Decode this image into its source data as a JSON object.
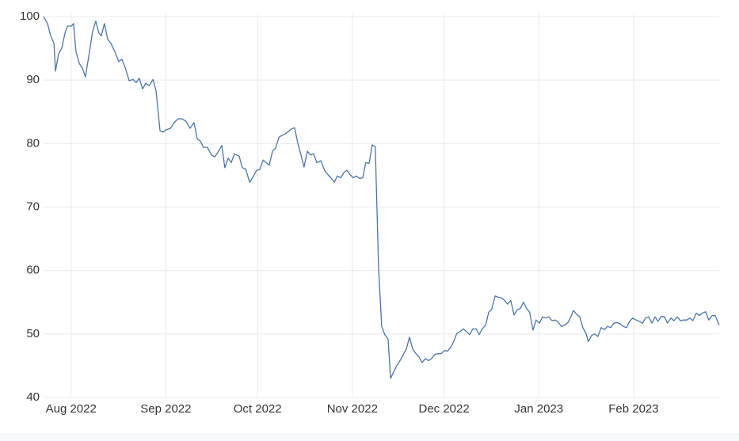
{
  "chart_data": {
    "type": "line",
    "x": [
      0,
      1.3,
      2.3,
      3.4,
      3.9,
      4.9,
      6,
      7,
      7.8,
      9.1,
      9.8,
      10.6,
      11.7,
      12.7,
      13.7,
      15,
      16,
      17.1,
      18.1,
      18.9,
      19.9,
      21,
      22,
      23.3,
      24.6,
      25.6,
      26.7,
      28,
      29.3,
      30.3,
      31.3,
      32.4,
      33.4,
      34.5,
      35.8,
      36.8,
      38.1,
      39.1,
      40.2,
      41.5,
      42.7,
      44,
      45.3,
      46.6,
      47.9,
      49.2,
      50.3,
      51.3,
      52.3,
      53.6,
      54.9,
      56,
      57,
      58.3,
      59.3,
      60.4,
      61.4,
      62.4,
      64,
      65,
      66.1,
      67.4,
      68.7,
      69.7,
      70.7,
      71.8,
      72.8,
      73.8,
      74.9,
      75.9,
      77,
      78,
      79,
      80.1,
      81.1,
      82.1,
      83.2,
      84.2,
      85.2,
      86.3,
      87.3,
      88.3,
      89.4,
      90.7,
      92,
      93,
      94,
      95.1,
      96.1,
      97.2,
      98.2,
      99.2,
      100.3,
      101.3,
      102.3,
      103.4,
      104.4,
      105.4,
      106.5,
      107.5,
      108.5,
      109.6,
      110.6,
      111.6,
      112.7,
      113.5,
      114.5,
      115.5,
      116.6,
      117.6,
      118.7,
      119.7,
      120.7,
      121.8,
      122.8,
      123.8,
      124.9,
      125.9,
      126.9,
      128,
      129,
      130.1,
      131.1,
      132.1,
      133.2,
      134.2,
      135.2,
      136.3,
      137.3,
      138.3,
      139.4,
      140.4,
      141.5,
      142.5,
      143.5,
      144.6,
      145.6,
      146.6,
      147.7,
      148.7,
      149.7,
      150.8,
      151.8,
      152.8,
      153.9,
      154.9,
      155.9,
      157,
      158,
      159,
      160.1,
      161.1,
      162.2,
      163.2,
      164.2,
      165.3,
      166.3,
      167.4,
      168.4,
      169.4,
      170.5,
      171.5,
      172.5,
      173.3,
      174.4,
      175.4,
      176.4,
      177.5,
      178.2,
      179.3,
      180.3,
      181.3,
      182.4,
      183.4,
      184.5,
      185.5,
      186.5,
      187.6,
      188.6,
      189.6,
      190.7,
      191.7,
      192.7,
      193.8,
      194.8,
      195.9,
      196.9,
      197.9,
      199,
      200,
      201,
      202.1,
      203.1,
      204.1,
      205.2,
      206.2,
      207.3,
      208.3,
      209.3,
      210.4,
      211.4,
      212.4,
      213.5,
      214.5,
      215.5,
      216.6,
      217.6,
      218.7,
      219.7,
      221
    ],
    "values": [
      100,
      98.9,
      97,
      95.8,
      91.4,
      94.1,
      95.1,
      97.4,
      98.5,
      98.5,
      98.9,
      94.5,
      92.6,
      91.9,
      90.5,
      94.4,
      97.6,
      99.3,
      97.4,
      97,
      98.9,
      96.4,
      95.8,
      94.5,
      92.9,
      93.3,
      92,
      89.9,
      90.1,
      89.6,
      90.3,
      88.6,
      89.5,
      89.1,
      90.1,
      88.3,
      82,
      81.8,
      82.2,
      82.4,
      83.3,
      83.9,
      83.9,
      83.5,
      82.4,
      83.3,
      80.7,
      80.4,
      79.4,
      79.4,
      78.2,
      77.9,
      78.6,
      79.7,
      76.2,
      77.7,
      77,
      78.4,
      78,
      76.2,
      76,
      73.9,
      74.9,
      75.8,
      75.9,
      77.4,
      77,
      76.6,
      78.8,
      79.3,
      81,
      81.3,
      81.5,
      81.9,
      82.3,
      82.5,
      80,
      78.2,
      76.3,
      78.8,
      78.2,
      78.4,
      77,
      77.3,
      75.7,
      75.1,
      74.6,
      73.9,
      74.9,
      74.6,
      75.4,
      75.8,
      75.1,
      74.6,
      74.9,
      74.5,
      74.6,
      77,
      76.9,
      79.8,
      79.5,
      60.2,
      51.2,
      49.9,
      49.2,
      43,
      44,
      45,
      45.8,
      46.7,
      47.7,
      49.5,
      47.7,
      46.9,
      46.4,
      45.5,
      46.1,
      45.8,
      46.1,
      46.8,
      46.9,
      46.9,
      47.4,
      47.3,
      47.9,
      48.9,
      50.1,
      50.4,
      50.8,
      50.4,
      49.9,
      50.8,
      50.8,
      49.9,
      50.8,
      51.4,
      53.4,
      53.9,
      56,
      55.8,
      55.7,
      55.3,
      54.7,
      55.3,
      53,
      53.8,
      54,
      55,
      54,
      53.4,
      50.6,
      52.2,
      51.7,
      52.7,
      52.5,
      52.7,
      52.1,
      52.2,
      51.8,
      51.2,
      51.4,
      51.8,
      52.7,
      53.7,
      53.1,
      52.7,
      51,
      50,
      48.8,
      49.8,
      50,
      49.6,
      51,
      50.7,
      51.2,
      51,
      51.7,
      51.8,
      51.6,
      51.2,
      51,
      52,
      52.5,
      52.2,
      52,
      51.7,
      52.5,
      52.7,
      51.7,
      52.7,
      52,
      52.8,
      52.7,
      51.7,
      52.5,
      52.1,
      52.7,
      52.1,
      52.2,
      52.2,
      52.5,
      52.1,
      53.3,
      52.9,
      53.3,
      53.5,
      52.2,
      52.9,
      52.9,
      51.4
    ],
    "color": "#4a74a5",
    "xlim": [
      0,
      221
    ],
    "xticks": [
      {
        "value": 9,
        "label": "Aug 2022"
      },
      {
        "value": 40,
        "label": "Sep 2022"
      },
      {
        "value": 70,
        "label": "Oct 2022"
      },
      {
        "value": 101,
        "label": "Nov 2022"
      },
      {
        "value": 131,
        "label": "Dec 2022"
      },
      {
        "value": 162,
        "label": "Jan 2023"
      },
      {
        "value": 193,
        "label": "Feb 2023"
      }
    ],
    "ylim": [
      40,
      100
    ],
    "yticks": [
      40,
      50,
      60,
      70,
      80,
      90,
      100
    ],
    "grid": true
  }
}
